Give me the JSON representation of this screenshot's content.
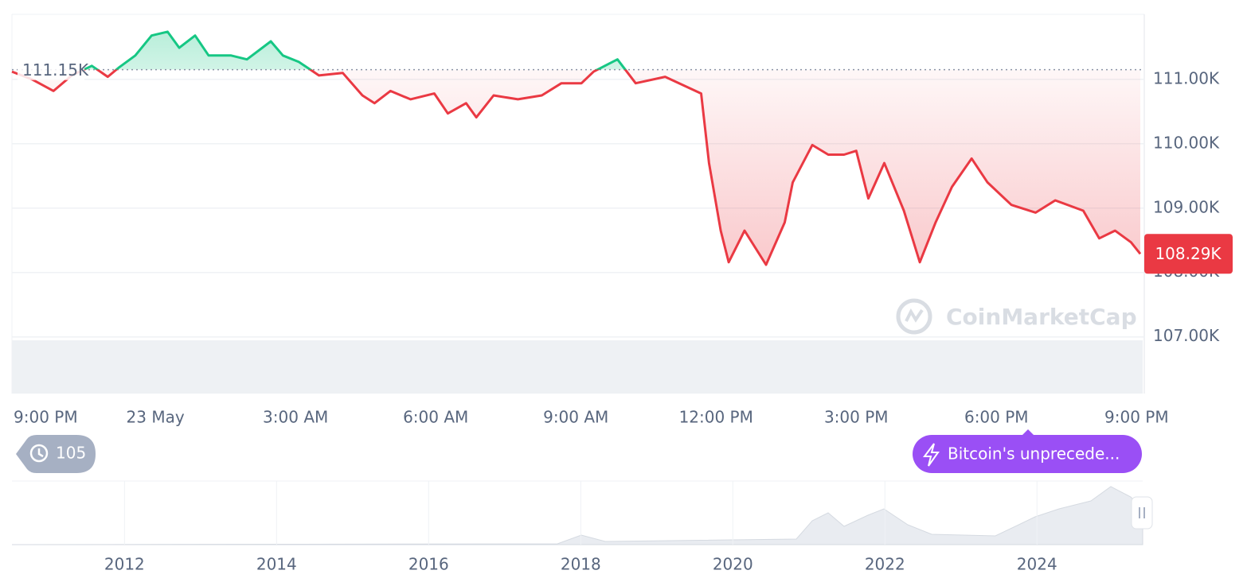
{
  "chart_data": {
    "type": "line",
    "x": [
      -0.07,
      0.36,
      0.82,
      1.21,
      1.64,
      1.98,
      2.23,
      2.57,
      2.92,
      3.26,
      3.51,
      3.85,
      4.14,
      4.62,
      4.96,
      5.47,
      5.73,
      6.07,
      6.5,
      7.01,
      7.43,
      7.69,
      8.03,
      8.46,
      8.97,
      9.26,
      9.65,
      9.87,
      10.24,
      10.76,
      11.27,
      11.69,
      12.12,
      12.38,
      12.89,
      13.28,
      13.91,
      14.68,
      14.85,
      15.1,
      15.27,
      15.61,
      16.07,
      16.47,
      16.64,
      17.06,
      17.4,
      17.74,
      18.0,
      18.26,
      18.6,
      19.02,
      19.36,
      19.7,
      20.05,
      20.47,
      20.81,
      21.32,
      21.84,
      22.26,
      22.86,
      23.2,
      23.54,
      23.88,
      24.08
    ],
    "values": [
      111120,
      111000,
      110820,
      111060,
      111210,
      111040,
      111190,
      111370,
      111680,
      111740,
      111490,
      111680,
      111370,
      111370,
      111310,
      111590,
      111370,
      111270,
      111060,
      111100,
      110750,
      110630,
      110820,
      110690,
      110780,
      110470,
      110630,
      110410,
      110750,
      110690,
      110750,
      110940,
      110940,
      111120,
      111310,
      110940,
      111040,
      110780,
      109700,
      108650,
      108160,
      108650,
      108120,
      108780,
      109400,
      109980,
      109830,
      109830,
      109890,
      109150,
      109700,
      108960,
      108160,
      108780,
      109330,
      109770,
      109400,
      109050,
      108930,
      109120,
      108960,
      108530,
      108650,
      108470,
      108290
    ],
    "up_color": "#16c784",
    "down_color": "#ea3943",
    "xlim": [
      -0.07,
      24.08
    ],
    "xticks": [
      {
        "value": 0,
        "label": "9:00 PM"
      },
      {
        "value": 3,
        "label": "23 May"
      },
      {
        "value": 6,
        "label": "3:00 AM"
      },
      {
        "value": 9,
        "label": "6:00 AM"
      },
      {
        "value": 12,
        "label": "9:00 AM"
      },
      {
        "value": 15,
        "label": "12:00 PM"
      },
      {
        "value": 18,
        "label": "3:00 PM"
      },
      {
        "value": 21,
        "label": "6:00 PM"
      },
      {
        "value": 24,
        "label": "9:00 PM"
      }
    ],
    "ylim": [
      106120,
      112010
    ],
    "yticks": [
      {
        "value": 107000,
        "label": "107.00K"
      },
      {
        "value": 108000,
        "label": "108.00K"
      },
      {
        "value": 109000,
        "label": "109.00K"
      },
      {
        "value": 110000,
        "label": "110.00K"
      },
      {
        "value": 111000,
        "label": "111.00K"
      }
    ],
    "grid": true,
    "reference": {
      "value": 111150,
      "label": "111.15K"
    },
    "last_price": {
      "value": 108290,
      "label": "108.29K"
    },
    "watermark": "CoinMarketCap",
    "navigator": {
      "xlim": [
        2010.52,
        2025.39
      ],
      "xticks": [
        2012,
        2014,
        2016,
        2018,
        2020,
        2022,
        2024
      ]
    }
  },
  "history_count": 105,
  "news_button": "Bitcoin's unprecede..."
}
